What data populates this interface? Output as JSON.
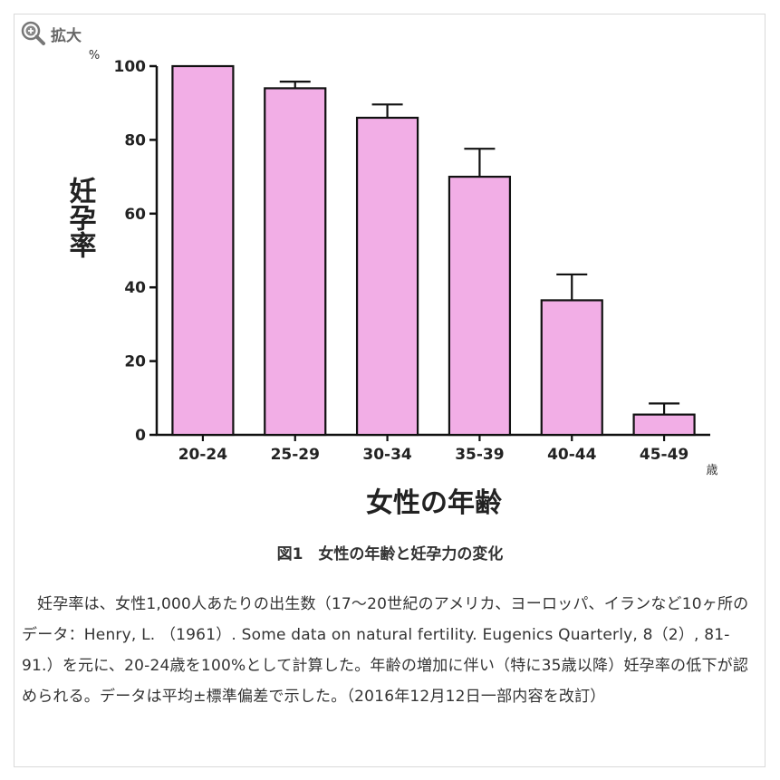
{
  "zoom": {
    "label": "拡大",
    "icon": "zoom-in-icon"
  },
  "chart_data": {
    "type": "bar",
    "ylabel": "妊孕率",
    "yunit": "%",
    "xlabel": "女性の年齢",
    "xunit": "歳",
    "categories": [
      "20-24",
      "25-29",
      "30-34",
      "35-39",
      "40-44",
      "45-49"
    ],
    "values": [
      100,
      94,
      86,
      70,
      36.5,
      5.5
    ],
    "error": [
      0,
      1.8,
      3.6,
      7.6,
      7.0,
      3.0
    ],
    "ylim": [
      0,
      100
    ],
    "yticks": [
      "0",
      "20",
      "40",
      "60",
      "80",
      "100"
    ],
    "bar_color": "#f2aee6",
    "bar_edge": "#111111",
    "grid": false
  },
  "caption": "図1　女性の年齢と妊孕力の変化",
  "description": "妊孕率は、女性1,000人あたりの出生数（17～20世紀のアメリカ、ヨーロッパ、イランなど10ヶ所のデータ：Henry, L. （1961）. Some data on natural fertility. Eugenics Quarterly, 8（2）, 81-91.）を元に、20-24歳を100%として計算した。年齢の増加に伴い（特に35歳以降）妊孕率の低下が認められる。データは平均±標準偏差で示した。（2016年12月12日一部内容を改訂）"
}
